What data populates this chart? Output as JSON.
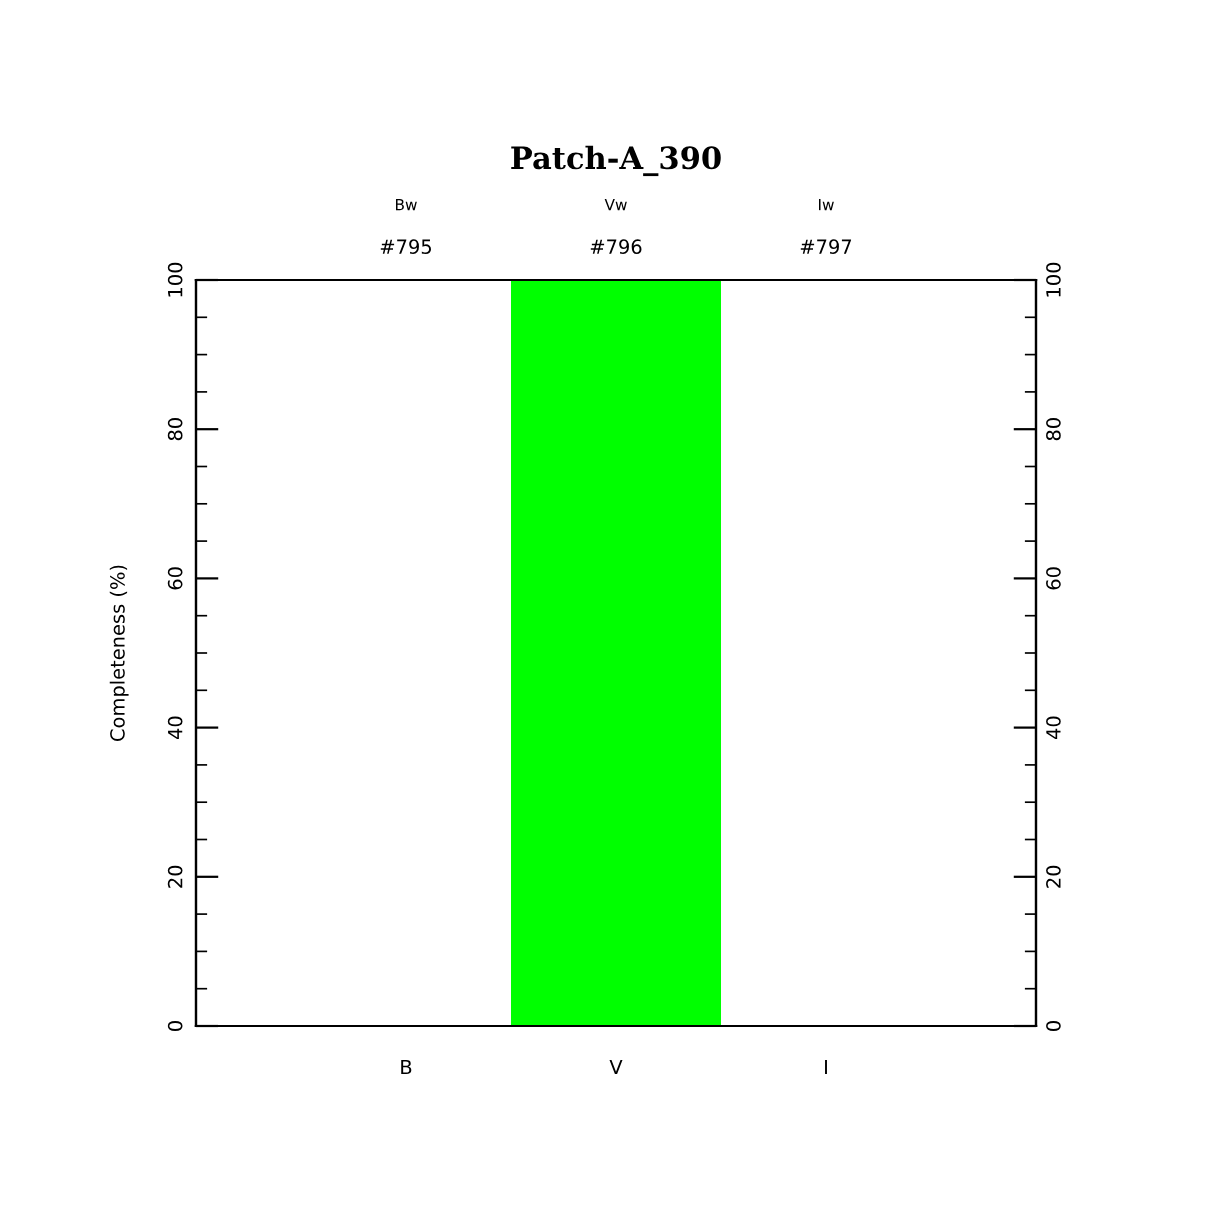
{
  "chart_data": {
    "type": "bar",
    "title": "Patch-A_390",
    "ylabel": "Completeness (%)",
    "categories": [
      "B",
      "V",
      "I"
    ],
    "values": [
      0,
      100,
      0
    ],
    "color": "#00ff00",
    "ylim": [
      0,
      100
    ],
    "yticks": [
      0,
      20,
      40,
      60,
      80,
      100
    ],
    "y2lim": [
      0,
      100
    ],
    "y2ticks": [
      0,
      20,
      40,
      60,
      80,
      100
    ],
    "annotations": [
      "Bw",
      "#795",
      "Vw",
      "#796",
      "Iw",
      "#797"
    ],
    "grid": false,
    "legend": false
  }
}
